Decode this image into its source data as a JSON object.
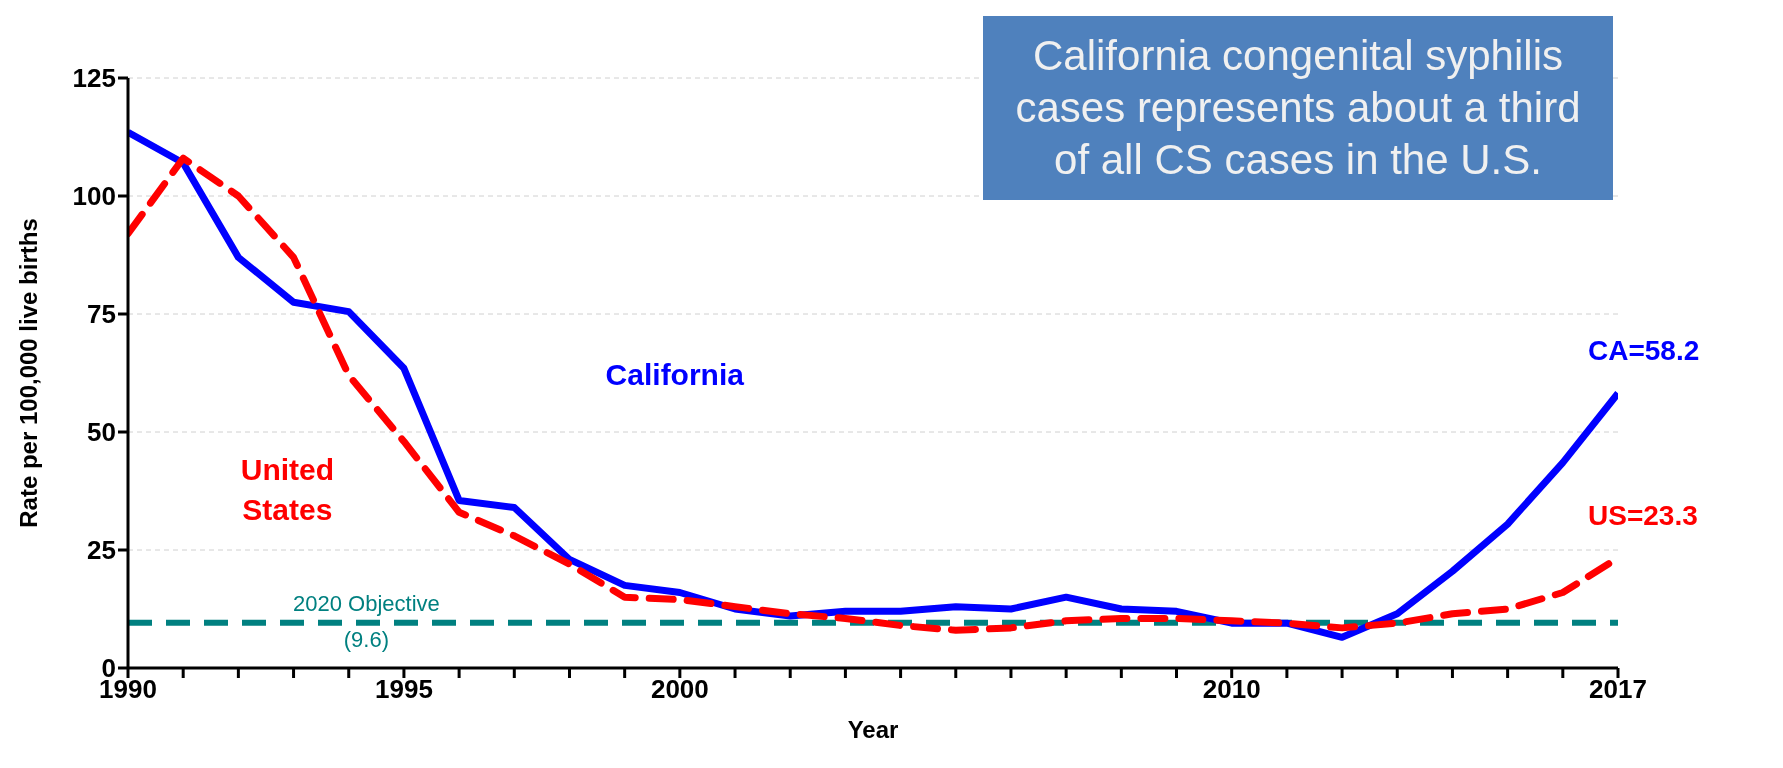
{
  "chart_data": {
    "type": "line",
    "title": "California congenital syphilis cases represents about a third of all CS cases in the U.S.",
    "xlabel": "Year",
    "ylabel": "Rate per 100,000 live births",
    "x": [
      1990,
      1991,
      1992,
      1993,
      1994,
      1995,
      1996,
      1997,
      1998,
      1999,
      2000,
      2001,
      2002,
      2003,
      2004,
      2005,
      2006,
      2007,
      2008,
      2009,
      2010,
      2011,
      2012,
      2013,
      2014,
      2015,
      2016,
      2017
    ],
    "series": [
      {
        "name": "California",
        "color": "#0000ff",
        "line_style": "solid",
        "values": [
          113.5,
          107,
          87,
          77.5,
          75.5,
          63.5,
          35.5,
          34,
          23,
          17.5,
          16,
          12.5,
          11,
          12,
          12,
          13,
          12.5,
          15,
          12.5,
          12,
          9.5,
          9.5,
          6.5,
          11.5,
          20.5,
          30.5,
          43.5,
          58.2
        ]
      },
      {
        "name": "United States",
        "color": "#ff0000",
        "line_style": "dashed",
        "values": [
          92,
          108,
          100,
          87,
          62,
          48,
          33,
          28,
          22,
          15,
          14.5,
          13,
          11.5,
          10.5,
          9,
          8,
          8.5,
          10,
          10.5,
          10.5,
          10,
          9.5,
          8.5,
          9.5,
          11.5,
          12.5,
          16,
          23.3
        ]
      }
    ],
    "xlim": [
      1990,
      2017
    ],
    "xticks": [
      1990,
      {
        "value": 1991,
        "label": null
      },
      {
        "value": 1992,
        "label": null
      },
      {
        "value": 1993,
        "label": null
      },
      {
        "value": 1994,
        "label": null
      },
      1995,
      {
        "value": 1996,
        "label": null
      },
      {
        "value": 1997,
        "label": null
      },
      {
        "value": 1998,
        "label": null
      },
      {
        "value": 1999,
        "label": null
      },
      2000,
      {
        "value": 2001,
        "label": null
      },
      {
        "value": 2002,
        "label": null
      },
      {
        "value": 2003,
        "label": null
      },
      {
        "value": 2004,
        "label": null
      },
      {
        "value": 2005,
        "label": null
      },
      {
        "value": 2006,
        "label": null
      },
      {
        "value": 2007,
        "label": null
      },
      {
        "value": 2008,
        "label": null
      },
      {
        "value": 2009,
        "label": null
      },
      2010,
      {
        "value": 2011,
        "label": null
      },
      {
        "value": 2012,
        "label": null
      },
      {
        "value": 2013,
        "label": null
      },
      {
        "value": 2014,
        "label": null
      },
      {
        "value": 2015,
        "label": null
      },
      {
        "value": 2016,
        "label": null
      },
      2017
    ],
    "ylim": [
      0,
      125
    ],
    "yticks": [
      0,
      25,
      50,
      75,
      100,
      125
    ],
    "ref_lines": [
      {
        "axis": "y",
        "value": 9.6,
        "label": "2020 Objective (9.6)",
        "color": "#008080",
        "line_style": "dashed"
      }
    ],
    "annotations": [
      {
        "text": "CA=58.2",
        "x": 2017,
        "y": 58.2
      },
      {
        "text": "US=23.3",
        "x": 2017,
        "y": 23.3
      }
    ],
    "grid": "y",
    "marker": "none"
  }
}
